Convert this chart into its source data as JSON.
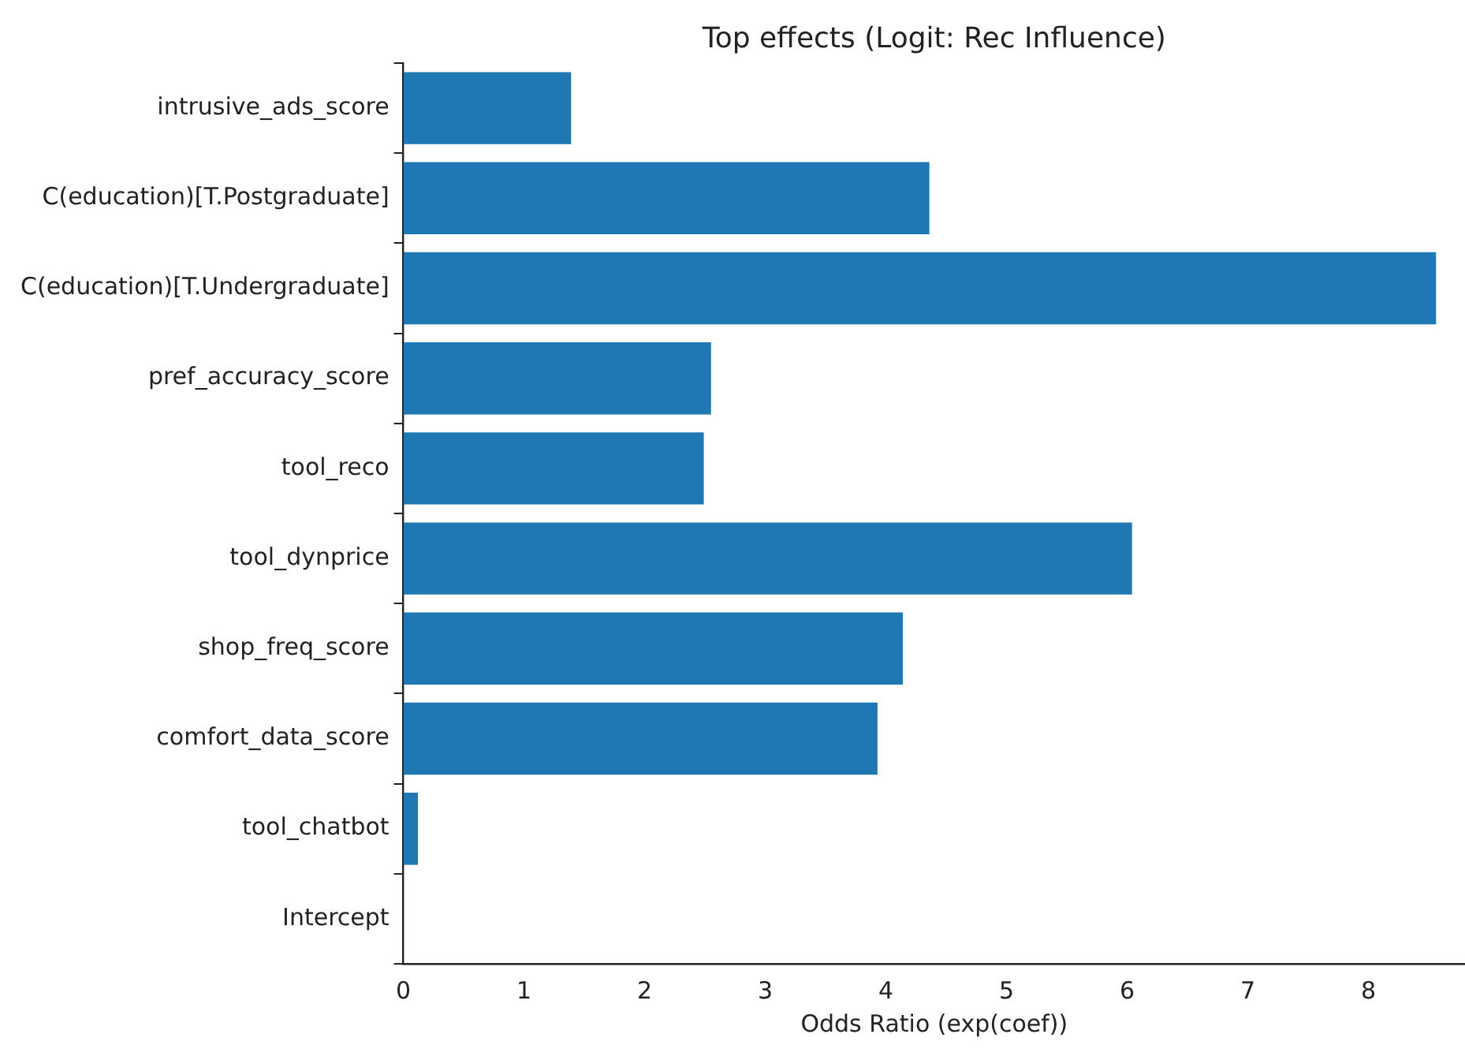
{
  "chart_data": {
    "type": "bar",
    "orientation": "horizontal",
    "title": "Top effects (Logit: Rec Influence)",
    "xlabel": "Odds Ratio (exp(coef))",
    "categories": [
      "intrusive_ads_score",
      "C(education)[T.Postgraduate]",
      "C(education)[T.Undergraduate]",
      "pref_accuracy_score",
      "tool_reco",
      "tool_dynprice",
      "shop_freq_score",
      "comfort_data_score",
      "tool_chatbot",
      "Intercept"
    ],
    "values": [
      1.39,
      4.36,
      8.56,
      2.55,
      2.49,
      6.04,
      4.14,
      3.93,
      0.12,
      0
    ],
    "color": "#1f77b4",
    "xlim": [
      0,
      8.8
    ],
    "xticks": [
      0,
      1,
      2,
      3,
      4,
      5,
      6,
      7,
      8
    ],
    "grid": false,
    "legend": false
  }
}
